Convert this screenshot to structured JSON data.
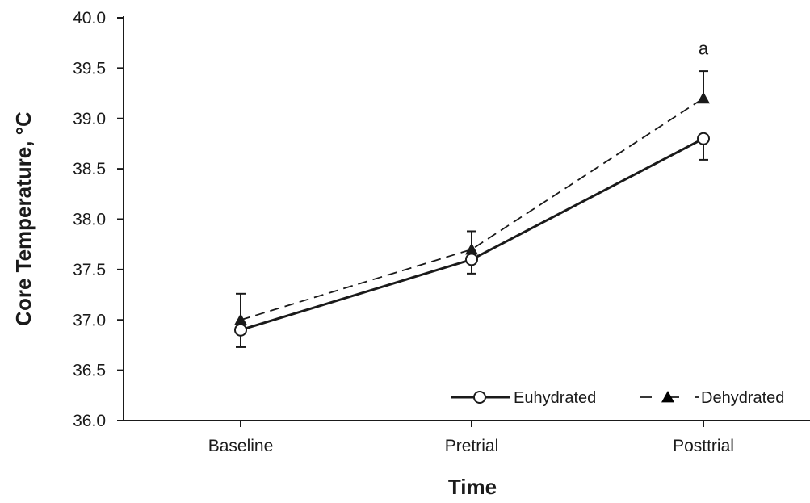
{
  "chart_data": {
    "type": "line",
    "title": "",
    "xlabel": "Time",
    "ylabel": "Core Temperature, °C",
    "categories": [
      "Baseline",
      "Pretrial",
      "Posttrial"
    ],
    "ylim": [
      36.0,
      40.0
    ],
    "yticks": [
      "36.0",
      "36.5",
      "37.0",
      "37.5",
      "38.0",
      "38.5",
      "39.0",
      "39.5",
      "40.0"
    ],
    "grid": false,
    "legend_position": "bottom-right",
    "series": [
      {
        "name": "Euhydrated",
        "values": [
          36.9,
          37.6,
          38.8
        ],
        "error_lower": [
          0.17,
          0.14,
          0.21
        ],
        "error_upper": [
          0.0,
          0.0,
          0.0
        ],
        "line_style": "solid",
        "marker": "open-circle",
        "color": "#1a1a1a"
      },
      {
        "name": "Dehydrated",
        "values": [
          37.0,
          37.7,
          39.2
        ],
        "error_lower": [
          0.0,
          0.0,
          0.0
        ],
        "error_upper": [
          0.26,
          0.18,
          0.27
        ],
        "line_style": "dashed",
        "marker": "filled-triangle",
        "color": "#1a1a1a"
      }
    ],
    "annotations": [
      {
        "text": "a",
        "category": "Posttrial",
        "y": 39.7
      }
    ]
  }
}
